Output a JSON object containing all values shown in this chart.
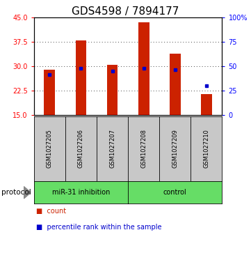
{
  "title": "GDS4598 / 7894177",
  "samples": [
    "GSM1027205",
    "GSM1027206",
    "GSM1027207",
    "GSM1027208",
    "GSM1027209",
    "GSM1027210"
  ],
  "bar_tops": [
    29.0,
    38.0,
    30.5,
    43.5,
    34.0,
    21.5
  ],
  "bar_bottom": 15,
  "bar_color": "#cc2200",
  "blue_left_values": [
    27.5,
    29.5,
    28.5,
    29.5,
    29.0,
    24.0
  ],
  "blue_color": "#0000cc",
  "ylim_left": [
    15,
    45
  ],
  "ylim_right": [
    0,
    100
  ],
  "yticks_left": [
    15,
    22.5,
    30,
    37.5,
    45
  ],
  "yticks_right": [
    0,
    25,
    50,
    75,
    100
  ],
  "ytick_labels_right": [
    "0",
    "25",
    "50",
    "75",
    "100%"
  ],
  "protocol_label": "protocol",
  "title_fontsize": 11,
  "bar_width": 0.35,
  "label_bg": "#c8c8c8",
  "green_color": "#66dd66",
  "group1_label": "miR-31 inhibition",
  "group2_label": "control"
}
